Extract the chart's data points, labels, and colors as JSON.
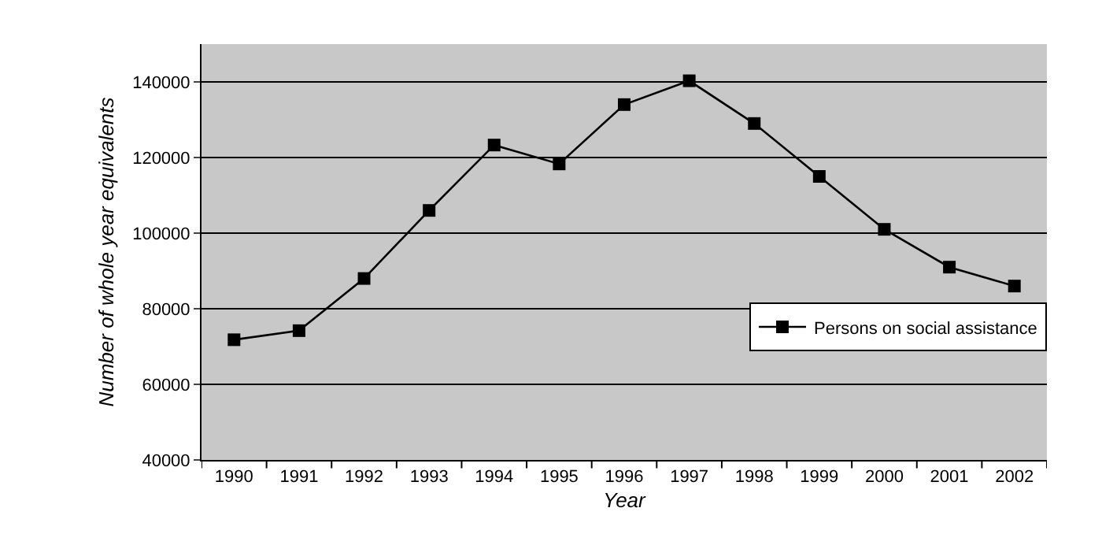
{
  "chart_data": {
    "type": "line",
    "xlabel": "Year",
    "ylabel": "Number of whole year equivalents",
    "categories": [
      "1990",
      "1991",
      "1992",
      "1993",
      "1994",
      "1995",
      "1996",
      "1997",
      "1998",
      "1999",
      "2000",
      "2001",
      "2002"
    ],
    "series": [
      {
        "name": "Persons on social assistance",
        "color": "#000000",
        "values": [
          71800,
          74200,
          88000,
          106000,
          123300,
          118300,
          134000,
          140300,
          129000,
          115000,
          101000,
          91000,
          86000
        ]
      }
    ],
    "ylim": [
      40000,
      150000
    ],
    "yticks": [
      40000,
      60000,
      80000,
      100000,
      120000,
      140000
    ],
    "grid": "y",
    "legend": "right",
    "marker": "square",
    "line_style": "solid"
  }
}
